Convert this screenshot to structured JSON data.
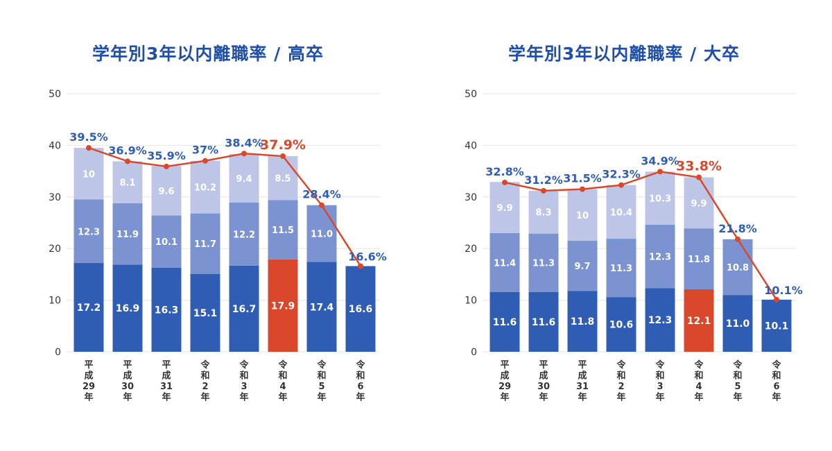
{
  "colors": {
    "seg_bottom": "#2f5db3",
    "seg_middle": "#7b93d1",
    "seg_top": "#bec6e8",
    "highlight": "#d9482b",
    "line": "#d9482b",
    "label_blue": "#2f5db3",
    "label_red": "#d9482b",
    "grid": "#e6e6e6",
    "axis_text": "#333333"
  },
  "chart_data": [
    {
      "type": "bar",
      "stacked": true,
      "title": "学年別3年以内離職率 / 高卒",
      "categories": [
        "平成29年",
        "平成30年",
        "平成31年",
        "令和2年",
        "令和3年",
        "令和4年",
        "令和5年",
        "令和6年"
      ],
      "category_lines": [
        [
          "平",
          "成",
          "29",
          "年"
        ],
        [
          "平",
          "成",
          "30",
          "年"
        ],
        [
          "平",
          "成",
          "31",
          "年"
        ],
        [
          "令",
          "和",
          "2",
          "年"
        ],
        [
          "令",
          "和",
          "3",
          "年"
        ],
        [
          "令",
          "和",
          "4",
          "年"
        ],
        [
          "令",
          "和",
          "5",
          "年"
        ],
        [
          "令",
          "和",
          "6",
          "年"
        ]
      ],
      "series": [
        {
          "values": [
            17.2,
            16.9,
            16.3,
            15.1,
            16.7,
            17.9,
            17.4,
            16.6
          ],
          "labels": [
            "17.2",
            "16.9",
            "16.3",
            "15.1",
            "16.7",
            "17.9",
            "17.4",
            "16.6"
          ]
        },
        {
          "values": [
            12.3,
            11.9,
            10.1,
            11.7,
            12.2,
            11.5,
            11.0,
            null
          ],
          "labels": [
            "12.3",
            "11.9",
            "10.1",
            "11.7",
            "12.2",
            "11.5",
            "11.0",
            ""
          ]
        },
        {
          "values": [
            10,
            8.1,
            9.6,
            10.2,
            9.4,
            8.5,
            null,
            null
          ],
          "labels": [
            "10",
            "8.1",
            "9.6",
            "10.2",
            "9.4",
            "8.5",
            "",
            ""
          ]
        }
      ],
      "totals": [
        39.5,
        36.9,
        35.9,
        37,
        38.4,
        37.9,
        28.4,
        16.6
      ],
      "total_labels": [
        "39.5%",
        "36.9%",
        "35.9%",
        "37%",
        "38.4%",
        "37.9%",
        "28.4%",
        "16.6%"
      ],
      "highlight_index": 5,
      "yticks": [
        "0",
        "10",
        "20",
        "30",
        "40",
        "50"
      ],
      "ylim": [
        0,
        50
      ],
      "grid": true
    },
    {
      "type": "bar",
      "stacked": true,
      "title": "学年別3年以内離職率 / 大卒",
      "categories": [
        "平成29年",
        "平成30年",
        "平成31年",
        "令和2年",
        "令和3年",
        "令和4年",
        "令和5年",
        "令和6年"
      ],
      "category_lines": [
        [
          "平",
          "成",
          "29",
          "年"
        ],
        [
          "平",
          "成",
          "30",
          "年"
        ],
        [
          "平",
          "成",
          "31",
          "年"
        ],
        [
          "令",
          "和",
          "2",
          "年"
        ],
        [
          "令",
          "和",
          "3",
          "年"
        ],
        [
          "令",
          "和",
          "4",
          "年"
        ],
        [
          "令",
          "和",
          "5",
          "年"
        ],
        [
          "令",
          "和",
          "6",
          "年"
        ]
      ],
      "series": [
        {
          "values": [
            11.6,
            11.6,
            11.8,
            10.6,
            12.3,
            12.1,
            11.0,
            10.1
          ],
          "labels": [
            "11.6",
            "11.6",
            "11.8",
            "10.6",
            "12.3",
            "12.1",
            "11.0",
            "10.1"
          ]
        },
        {
          "values": [
            11.4,
            11.3,
            9.7,
            11.3,
            12.3,
            11.8,
            10.8,
            null
          ],
          "labels": [
            "11.4",
            "11.3",
            "9.7",
            "11.3",
            "12.3",
            "11.8",
            "10.8",
            ""
          ]
        },
        {
          "values": [
            9.9,
            8.3,
            10,
            10.4,
            10.3,
            9.9,
            null,
            null
          ],
          "labels": [
            "9.9",
            "8.3",
            "10",
            "10.4",
            "10.3",
            "9.9",
            "",
            ""
          ]
        }
      ],
      "totals": [
        32.8,
        31.2,
        31.5,
        32.3,
        34.9,
        33.8,
        21.8,
        10.1
      ],
      "total_labels": [
        "32.8%",
        "31.2%",
        "31.5%",
        "32.3%",
        "34.9%",
        "33.8%",
        "21.8%",
        "10.1%"
      ],
      "highlight_index": 5,
      "yticks": [
        "0",
        "10",
        "20",
        "30",
        "40",
        "50"
      ],
      "ylim": [
        0,
        50
      ],
      "grid": true
    }
  ]
}
